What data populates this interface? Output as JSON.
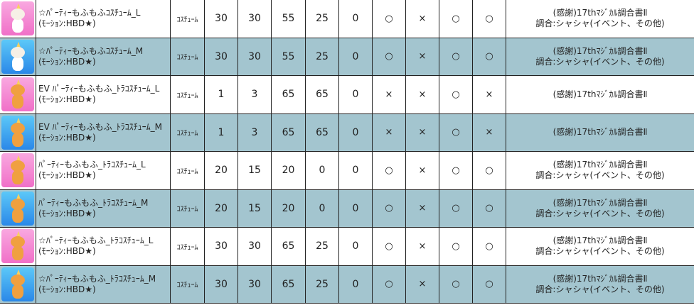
{
  "rows": [
    {
      "bg": "pink",
      "cat": "white",
      "name1": "☆ﾊﾟｰﾃｨｰもふもふｺｽﾁｭｰﾑ_L",
      "name2": "(ﾓｰｼｮﾝ:HBD★)",
      "type": "ｺｽﾁｭｰﾑ",
      "v": [
        "30",
        "30",
        "55",
        "25",
        "0"
      ],
      "m": [
        "○",
        "×",
        "○",
        "○"
      ],
      "src1": "(感謝)17thﾏｼﾞｶﾙ調合書Ⅱ",
      "src2": "調合:シャシャ(イベント、その他)"
    },
    {
      "bg": "blue",
      "cat": "white",
      "name1": "☆ﾊﾟｰﾃｨｰもふもふｺｽﾁｭｰﾑ_M",
      "name2": "(ﾓｰｼｮﾝ:HBD★)",
      "type": "ｺｽﾁｭｰﾑ",
      "v": [
        "30",
        "30",
        "55",
        "25",
        "0"
      ],
      "m": [
        "○",
        "×",
        "○",
        "○"
      ],
      "src1": "(感謝)17thﾏｼﾞｶﾙ調合書Ⅱ",
      "src2": "調合:シャシャ(イベント、その他)"
    },
    {
      "bg": "pink",
      "cat": "orange",
      "name1": "EV ﾊﾟｰﾃｨｰもふもふ_ﾄﾗｺｽﾁｭｰﾑ_L",
      "name2": "(ﾓｰｼｮﾝ:HBD★)",
      "type": "ｺｽﾁｭｰﾑ",
      "v": [
        "1",
        "3",
        "65",
        "65",
        "0"
      ],
      "m": [
        "×",
        "×",
        "○",
        "×"
      ],
      "src1": "(感謝)17thﾏｼﾞｶﾙ調合書Ⅱ",
      "src2": ""
    },
    {
      "bg": "blue",
      "cat": "orange",
      "name1": "EV ﾊﾟｰﾃｨｰもふもふ_ﾄﾗｺｽﾁｭｰﾑ_M",
      "name2": "(ﾓｰｼｮﾝ:HBD★)",
      "type": "ｺｽﾁｭｰﾑ",
      "v": [
        "1",
        "3",
        "65",
        "65",
        "0"
      ],
      "m": [
        "×",
        "×",
        "○",
        "×"
      ],
      "src1": "(感謝)17thﾏｼﾞｶﾙ調合書Ⅱ",
      "src2": ""
    },
    {
      "bg": "pink",
      "cat": "orange",
      "name1": "ﾊﾟｰﾃｨｰもふもふ_ﾄﾗｺｽﾁｭｰﾑ_L",
      "name2": "(ﾓｰｼｮﾝ:HBD★)",
      "type": "ｺｽﾁｭｰﾑ",
      "v": [
        "20",
        "15",
        "20",
        "0",
        "0"
      ],
      "m": [
        "○",
        "×",
        "○",
        "○"
      ],
      "src1": "(感謝)17thﾏｼﾞｶﾙ調合書Ⅱ",
      "src2": "調合:シャシャ(イベント、その他)"
    },
    {
      "bg": "blue",
      "cat": "orange",
      "name1": "ﾊﾟｰﾃｨｰもふもふ_ﾄﾗｺｽﾁｭｰﾑ_M",
      "name2": "(ﾓｰｼｮﾝ:HBD★)",
      "type": "ｺｽﾁｭｰﾑ",
      "v": [
        "20",
        "15",
        "20",
        "0",
        "0"
      ],
      "m": [
        "○",
        "×",
        "○",
        "○"
      ],
      "src1": "(感謝)17thﾏｼﾞｶﾙ調合書Ⅱ",
      "src2": "調合:シャシャ(イベント、その他)"
    },
    {
      "bg": "pink",
      "cat": "orange",
      "name1": "☆ﾊﾟｰﾃｨｰもふもふ_ﾄﾗｺｽﾁｭｰﾑ_L",
      "name2": "(ﾓｰｼｮﾝ:HBD★)",
      "type": "ｺｽﾁｭｰﾑ",
      "v": [
        "30",
        "30",
        "65",
        "25",
        "0"
      ],
      "m": [
        "○",
        "×",
        "○",
        "○"
      ],
      "src1": "(感謝)17thﾏｼﾞｶﾙ調合書Ⅱ",
      "src2": "調合:シャシャ(イベント、その他)"
    },
    {
      "bg": "blue",
      "cat": "orange",
      "name1": "☆ﾊﾟｰﾃｨｰもふもふ_ﾄﾗｺｽﾁｭｰﾑ_M",
      "name2": "(ﾓｰｼｮﾝ:HBD★)",
      "type": "ｺｽﾁｭｰﾑ",
      "v": [
        "30",
        "30",
        "65",
        "25",
        "0"
      ],
      "m": [
        "○",
        "×",
        "○",
        "○"
      ],
      "src1": "(感謝)17thﾏｼﾞｶﾙ調合書Ⅱ",
      "src2": "調合:シャシャ(イベント、その他)"
    }
  ]
}
